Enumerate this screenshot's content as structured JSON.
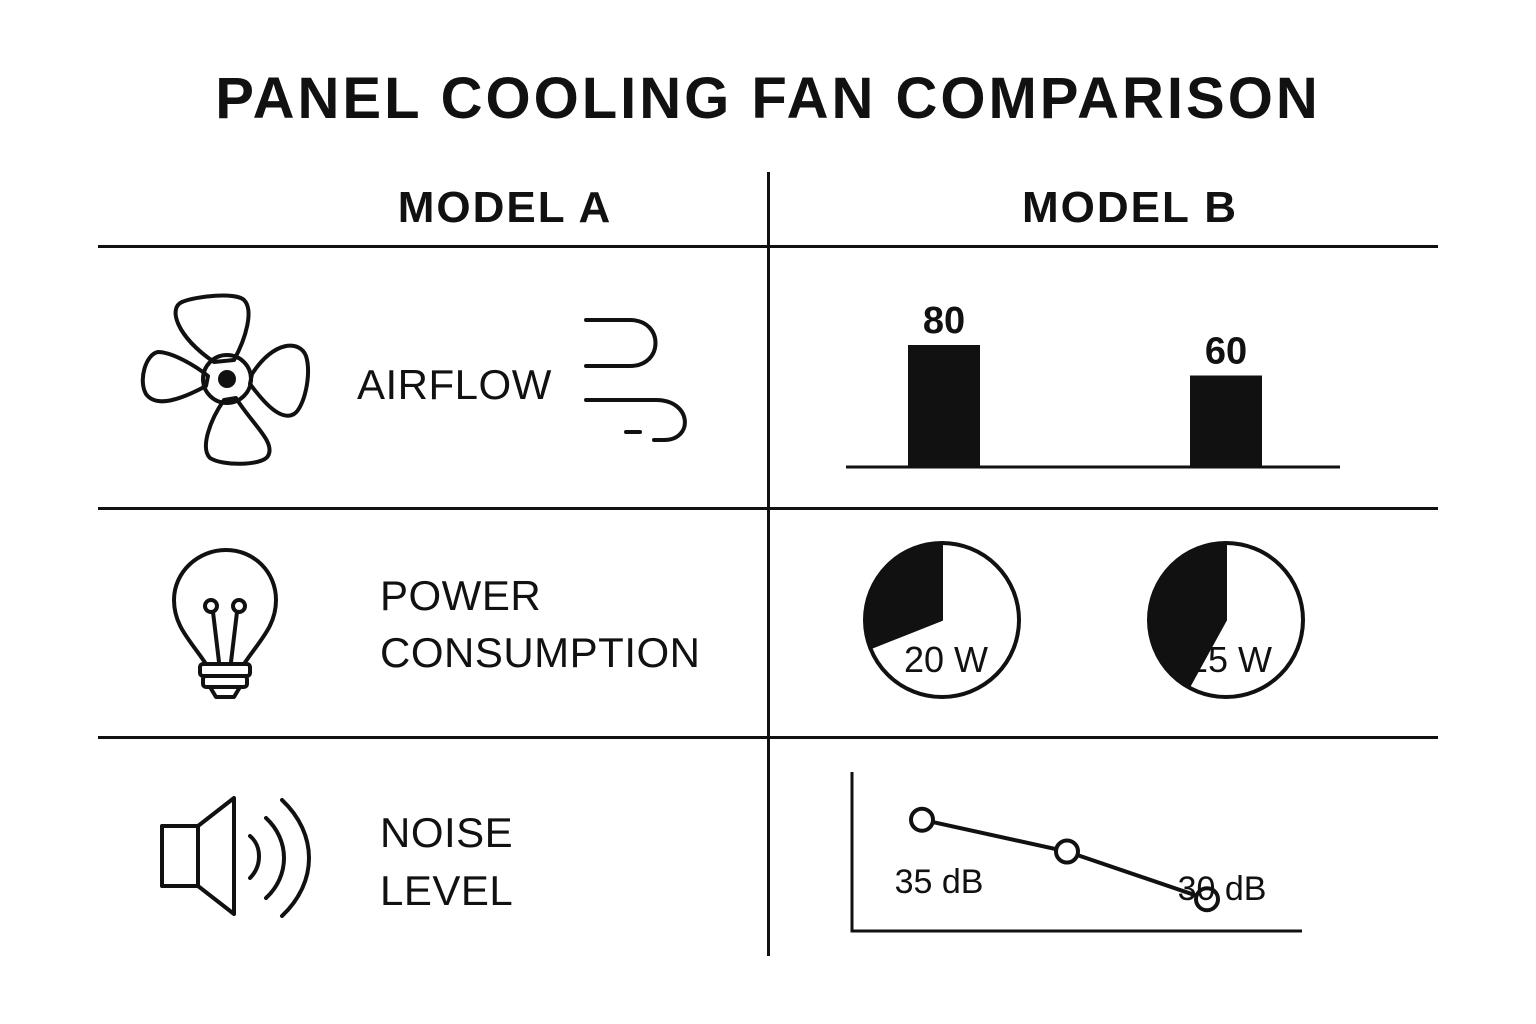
{
  "title": "PANEL COOLING FAN COMPARISON",
  "columns": [
    "MODEL A",
    "MODEL B"
  ],
  "rows": [
    {
      "label_lines": [
        "AIRFLOW"
      ],
      "icon": "fan-icon",
      "extra_icon": "wind-icon"
    },
    {
      "label_lines": [
        "POWER",
        "CONSUMPTION"
      ],
      "icon": "lightbulb-icon"
    },
    {
      "label_lines": [
        "NOISE",
        "LEVEL"
      ],
      "icon": "speaker-icon"
    }
  ],
  "chart_data": [
    {
      "type": "bar",
      "metric": "airflow",
      "categories": [
        "",
        ""
      ],
      "values": [
        80,
        60
      ],
      "data_labels": [
        "80",
        "60"
      ],
      "ylim": [
        0,
        80
      ]
    },
    {
      "type": "pie",
      "metric": "power",
      "gauges": [
        {
          "label": "20 W",
          "value": 20,
          "fill_fraction": 0.31
        },
        {
          "label": "25 W",
          "value": 25,
          "fill_fraction": 0.42
        }
      ]
    },
    {
      "type": "line",
      "metric": "noise",
      "points": [
        {
          "value": 35,
          "label": "35 dB"
        },
        {
          "value": 33,
          "label": ""
        },
        {
          "value": 30,
          "label": "30 dB"
        }
      ],
      "ylim": [
        28,
        38
      ]
    }
  ],
  "colors": {
    "ink": "#111111",
    "background": "#ffffff"
  }
}
